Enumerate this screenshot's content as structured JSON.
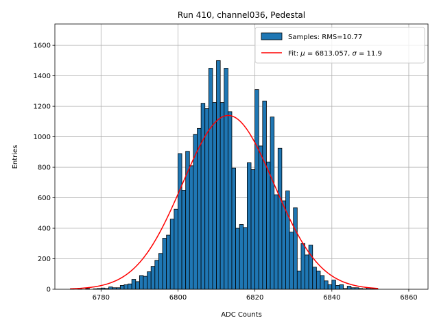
{
  "chart_data": {
    "type": "bar",
    "title": "Run 410, channel036, Pedestal",
    "xlabel": "ADC Counts",
    "ylabel": "Entries",
    "xlim": [
      6768,
      6865
    ],
    "ylim": [
      0,
      1740
    ],
    "xticks": [
      6780,
      6800,
      6820,
      6840,
      6860
    ],
    "yticks": [
      0,
      200,
      400,
      600,
      800,
      1000,
      1200,
      1400,
      1600
    ],
    "grid": true,
    "legend_position": "top-right",
    "colors": {
      "bars": "#1f77b4",
      "bar_edge": "#000000",
      "fit": "#ff0000",
      "grid": "#b0b0b0"
    },
    "histogram": {
      "name": "Samples: RMS=10.77",
      "bin_width": 1,
      "bins": [
        6772,
        6773,
        6774,
        6775,
        6776,
        6777,
        6778,
        6779,
        6780,
        6781,
        6782,
        6783,
        6784,
        6785,
        6786,
        6787,
        6788,
        6789,
        6790,
        6791,
        6792,
        6793,
        6794,
        6795,
        6796,
        6797,
        6798,
        6799,
        6800,
        6801,
        6802,
        6803,
        6804,
        6805,
        6806,
        6807,
        6808,
        6809,
        6810,
        6811,
        6812,
        6813,
        6814,
        6815,
        6816,
        6817,
        6818,
        6819,
        6820,
        6821,
        6822,
        6823,
        6824,
        6825,
        6826,
        6827,
        6828,
        6829,
        6830,
        6831,
        6832,
        6833,
        6834,
        6835,
        6836,
        6837,
        6838,
        6839,
        6840,
        6841,
        6842,
        6843,
        6844,
        6845,
        6846,
        6847,
        6848,
        6849,
        6850,
        6851
      ],
      "values": [
        3,
        0,
        3,
        0,
        5,
        0,
        3,
        5,
        8,
        5,
        15,
        10,
        10,
        25,
        30,
        35,
        65,
        50,
        90,
        85,
        115,
        150,
        190,
        235,
        335,
        355,
        460,
        525,
        890,
        650,
        905,
        810,
        1015,
        1055,
        1220,
        1185,
        1450,
        1225,
        1500,
        1225,
        1450,
        1165,
        795,
        400,
        425,
        405,
        830,
        785,
        1310,
        940,
        1235,
        835,
        1130,
        620,
        925,
        580,
        645,
        375,
        535,
        120,
        300,
        225,
        290,
        145,
        120,
        90,
        55,
        30,
        60,
        25,
        30,
        5,
        20,
        10,
        10,
        5,
        3,
        8,
        3,
        3
      ]
    },
    "fit": {
      "name": "Fit: μ = 6813.057, σ = 11.9",
      "function": "gaussian",
      "mu": 6813.057,
      "sigma": 11.9,
      "amplitude": 1140,
      "x_range": [
        6772,
        6852
      ]
    }
  },
  "page": {
    "title": "Run 410, channel036, Pedestal",
    "xlabel": "ADC Counts",
    "ylabel": "Entries",
    "legend_hist": "Samples: RMS=10.77",
    "legend_fit_prefix": "Fit: ",
    "legend_fit_mu_symbol": "μ",
    "legend_fit_mu_text": " = 6813.057, ",
    "legend_fit_sigma_symbol": "σ",
    "legend_fit_sigma_text": " = 11.9"
  }
}
